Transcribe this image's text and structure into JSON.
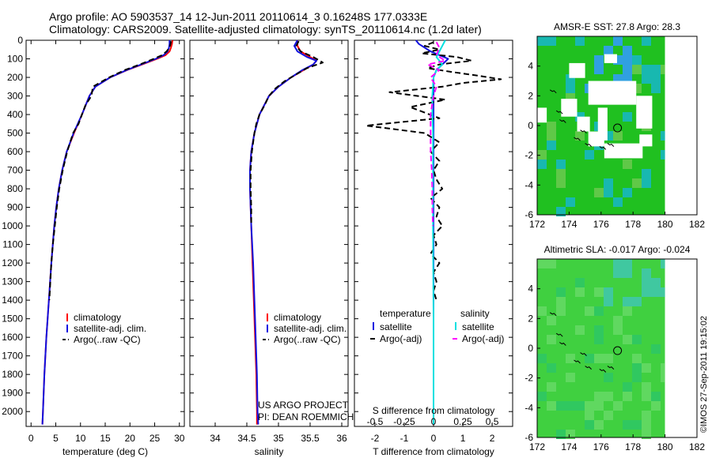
{
  "header": {
    "line1": "Argo profile: AO 5903537_14 12-Jun-2011 20110614_3 0.16248S 177.0333E",
    "line2": "Climatology: CARS2009. Satellite-adjusted climatology: synTS_20110614.nc (1.2d later)"
  },
  "colors": {
    "climatology": "#ff0000",
    "satellite": "#1010e0",
    "argo": "#000000",
    "salinity_satellite": "#00e0e0",
    "salinity_argo": "#ff00ff",
    "sst_field": "#20c020",
    "sst_warm": "#10a0d0",
    "sla_field": "#40d040"
  },
  "chart_data": [
    {
      "type": "line",
      "name": "temperature-profile",
      "xlabel": "temperature (deg C)",
      "ylabel": "",
      "xlim": [
        -1,
        31
      ],
      "ylim": [
        2080,
        0
      ],
      "xticks": [
        0,
        5,
        10,
        15,
        20,
        25,
        30
      ],
      "yticks": [
        0,
        100,
        200,
        300,
        400,
        500,
        600,
        700,
        800,
        900,
        1000,
        1100,
        1200,
        1300,
        1400,
        1500,
        1600,
        1700,
        1800,
        1900,
        2000
      ],
      "legend": [
        "climatology",
        "satellite-adj. clim.",
        "Argo(..raw -QC)"
      ],
      "series": [
        {
          "name": "climatology",
          "depth": [
            0,
            20,
            40,
            60,
            80,
            100,
            130,
            160,
            200,
            250,
            300,
            400,
            500,
            600,
            700,
            800,
            900,
            1000,
            1200,
            1400,
            1600,
            1800,
            2000,
            2070
          ],
          "values": [
            28.6,
            28.5,
            28.3,
            28.0,
            27.2,
            25.5,
            22.5,
            19.5,
            16.0,
            13.0,
            11.8,
            10.3,
            8.7,
            7.2,
            6.3,
            5.6,
            5.1,
            4.7,
            4.1,
            3.6,
            3.1,
            2.7,
            2.4,
            2.3
          ]
        },
        {
          "name": "satellite-adj. clim.",
          "depth": [
            0,
            20,
            40,
            60,
            80,
            100,
            130,
            160,
            200,
            250,
            300,
            400,
            500,
            600,
            700,
            800,
            900,
            1000,
            1200,
            1400,
            1600,
            1800,
            2000,
            2070
          ],
          "values": [
            28.0,
            28.0,
            27.9,
            27.6,
            26.8,
            25.2,
            22.3,
            19.4,
            16.0,
            13.0,
            11.8,
            10.3,
            8.6,
            7.2,
            6.3,
            5.6,
            5.1,
            4.7,
            4.1,
            3.6,
            3.1,
            2.7,
            2.4,
            2.3
          ]
        },
        {
          "name": "Argo(..raw -QC)",
          "depth": [
            5,
            20,
            40,
            60,
            80,
            100,
            130,
            160,
            200,
            250,
            300,
            350,
            400,
            450,
            500,
            600,
            700,
            800,
            900,
            1000,
            1100,
            1200,
            1300,
            1400
          ],
          "values": [
            28.3,
            28.2,
            28.0,
            27.4,
            26.5,
            24.8,
            22.0,
            19.0,
            15.8,
            12.5,
            12.2,
            11.0,
            10.3,
            9.6,
            8.5,
            7.3,
            6.4,
            5.7,
            5.2,
            4.8,
            4.4,
            4.1,
            3.9,
            3.7
          ]
        }
      ]
    },
    {
      "type": "line",
      "name": "salinity-profile",
      "xlabel": "salinity",
      "xlim": [
        33.6,
        36.1
      ],
      "ylim": [
        2080,
        0
      ],
      "xticks": [
        34,
        34.5,
        35,
        35.5,
        36
      ],
      "legend": [
        "climatology",
        "satellite-adj. clim.",
        "Argo(..raw -QC)"
      ],
      "credits": [
        "US ARGO PROJECT",
        "PI: DEAN ROEMMICH"
      ],
      "series": [
        {
          "name": "climatology",
          "depth": [
            0,
            30,
            60,
            90,
            110,
            130,
            160,
            200,
            250,
            300,
            400,
            500,
            600,
            700,
            800,
            900,
            1000,
            1200,
            1400,
            1600,
            1800,
            2000,
            2070
          ],
          "values": [
            35.3,
            35.3,
            35.35,
            35.5,
            35.6,
            35.55,
            35.4,
            35.2,
            35.0,
            34.85,
            34.7,
            34.62,
            34.57,
            34.55,
            34.55,
            34.56,
            34.57,
            34.59,
            34.61,
            34.63,
            34.65,
            34.66,
            34.66
          ]
        },
        {
          "name": "satellite-adj. clim.",
          "depth": [
            0,
            30,
            60,
            90,
            110,
            130,
            160,
            200,
            250,
            300,
            400,
            500,
            600,
            700,
            800,
            900,
            1000,
            1200,
            1400,
            1600,
            1800,
            2000,
            2070
          ],
          "values": [
            35.3,
            35.25,
            35.3,
            35.45,
            35.6,
            35.55,
            35.38,
            35.2,
            35.0,
            34.85,
            34.7,
            34.62,
            34.57,
            34.55,
            34.55,
            34.56,
            34.57,
            34.6,
            34.62,
            34.64,
            34.66,
            34.67,
            34.68
          ]
        },
        {
          "name": "Argo(..raw -QC)",
          "depth": [
            5,
            30,
            60,
            90,
            120,
            150,
            180,
            220,
            260,
            300,
            350,
            400,
            450,
            500,
            600,
            700,
            800,
            900,
            1000
          ],
          "values": [
            35.32,
            35.28,
            35.35,
            35.55,
            35.7,
            35.45,
            35.3,
            35.1,
            34.95,
            34.85,
            34.78,
            34.7,
            34.65,
            34.62,
            34.58,
            34.56,
            34.56,
            34.57,
            34.57
          ]
        }
      ]
    },
    {
      "type": "line",
      "name": "difference-profile",
      "xlabel": "T difference from climatology",
      "xlabel_top": "S difference from climatology",
      "xlim": [
        -2.7,
        2.7
      ],
      "ylim": [
        2080,
        0
      ],
      "xticks": [
        -2,
        -1,
        0,
        1,
        2
      ],
      "xticks_s": [
        -0.5,
        -0.25,
        0,
        0.25,
        0.5
      ],
      "legend_titles": [
        "temperature",
        "salinity"
      ],
      "legend": [
        "satellite",
        "Argo(-adj)",
        "satellite",
        "Argo(-adj)"
      ],
      "series": [
        {
          "name": "temperature satellite",
          "depth": [
            0,
            20,
            40,
            60,
            80,
            100,
            130,
            160,
            200,
            250,
            300,
            400,
            500,
            600,
            700,
            800,
            900,
            1000,
            1500,
            2000,
            2070
          ],
          "values": [
            -0.6,
            -0.5,
            -0.3,
            -0.1,
            0.2,
            0.5,
            0.3,
            0.1,
            0.0,
            0.0,
            0.0,
            0.0,
            0.0,
            0.0,
            0.0,
            0.0,
            0.0,
            0.0,
            0.0,
            0.0,
            0.0
          ]
        },
        {
          "name": "temperature Argo(-adj)",
          "depth": [
            10,
            30,
            50,
            70,
            90,
            110,
            130,
            150,
            170,
            190,
            210,
            230,
            250,
            280,
            320,
            360,
            420,
            460,
            500,
            550,
            600,
            650,
            700,
            750,
            800,
            850,
            900,
            950,
            1000,
            1050,
            1100,
            1150,
            1200,
            1250,
            1300,
            1350,
            1400
          ],
          "values": [
            0.0,
            -0.3,
            0.2,
            -0.4,
            0.8,
            1.3,
            0.2,
            -0.2,
            0.6,
            1.5,
            2.3,
            1.0,
            0.3,
            -1.5,
            0.4,
            -0.8,
            0.2,
            -2.3,
            -0.3,
            0.2,
            -0.1,
            0.2,
            0.0,
            0.1,
            0.3,
            -0.1,
            0.2,
            0.1,
            0.3,
            0.0,
            0.1,
            -0.1,
            0.2,
            0.0,
            0.1,
            0.0,
            0.1
          ]
        },
        {
          "name": "salinity satellite",
          "depth": [
            0,
            30,
            60,
            90,
            110,
            130,
            160,
            200,
            300,
            400,
            500,
            1000,
            1500,
            2000,
            2070
          ],
          "values": [
            0.2,
            0.15,
            0.1,
            0.05,
            0.1,
            0.15,
            0.05,
            0.0,
            -0.02,
            -0.02,
            -0.01,
            -0.01,
            0.0,
            0.0,
            0.0
          ]
        },
        {
          "name": "salinity Argo(-adj)",
          "depth": [
            10,
            40,
            80,
            110,
            130,
            160,
            200,
            250,
            300,
            400,
            500,
            600,
            700,
            800,
            900,
            1000
          ],
          "values": [
            0.05,
            0.1,
            0.05,
            0.2,
            -0.1,
            0.1,
            -0.05,
            0.05,
            0.0,
            -0.05,
            -0.05,
            -0.05,
            -0.03,
            -0.02,
            -0.02,
            -0.01
          ]
        }
      ]
    },
    {
      "type": "heatmap",
      "name": "amsre-sst-map",
      "title": "AMSR-E SST: 27.8 Argo: 28.3",
      "xlim": [
        172,
        182
      ],
      "ylim": [
        -6,
        6
      ],
      "xticks": [
        172,
        174,
        176,
        178,
        180,
        182
      ],
      "yticks": [
        -6,
        -4,
        -2,
        0,
        2,
        4
      ],
      "float_position": [
        177.03,
        -0.16
      ]
    },
    {
      "type": "heatmap",
      "name": "altimetric-sla-map",
      "title": "Altimetric SLA: -0.017 Argo: -0.024",
      "xlim": [
        172,
        182
      ],
      "ylim": [
        -6,
        6
      ],
      "xticks": [
        172,
        174,
        176,
        178,
        180,
        182
      ],
      "yticks": [
        -6,
        -4,
        -2,
        0,
        2,
        4
      ],
      "float_position": [
        177.03,
        -0.16
      ]
    }
  ],
  "footer": {
    "stamp": "©IMOS 27-Sep-2011 19:15:02"
  }
}
